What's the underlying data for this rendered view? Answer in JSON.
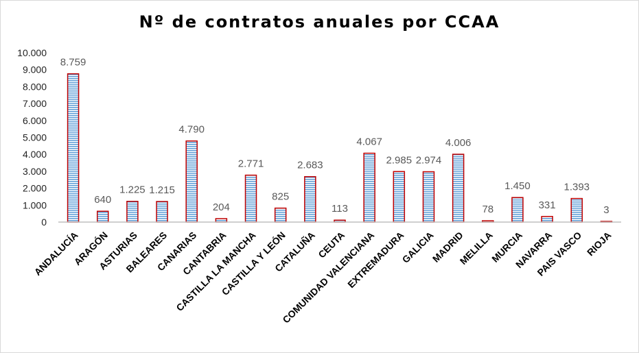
{
  "chart_data": {
    "type": "bar",
    "title": "Nº de contratos anuales por CCAA",
    "xlabel": "",
    "ylabel": "",
    "ylim": [
      0,
      10000
    ],
    "yticks": [
      "0",
      "1.000",
      "2.000",
      "3.000",
      "4.000",
      "5.000",
      "6.000",
      "7.000",
      "8.000",
      "9.000",
      "10.000"
    ],
    "grid": false,
    "legend": "none",
    "categories": [
      "ANDALUCÍA",
      "ARAGÓN",
      "ASTURIAS",
      "BALEARES",
      "CANARIAS",
      "CANTABRIA",
      "CASTILLA LA MANCHA",
      "CASTILLA Y LEÓN",
      "CATALUÑA",
      "CEUTA",
      "COMUNIDAD VALENCIANA",
      "EXTREMADURA",
      "GALICIA",
      "MADRID",
      "MELILLA",
      "MURCIA",
      "NAVARRA",
      "PAIS VASCO",
      "RIOJA"
    ],
    "values": [
      8759,
      640,
      1225,
      1215,
      4790,
      204,
      2771,
      825,
      2683,
      113,
      4067,
      2985,
      2974,
      4006,
      78,
      1450,
      331,
      1393,
      3
    ],
    "data_labels": [
      "8.759",
      "640",
      "1.225",
      "1.215",
      "4.790",
      "204",
      "2.771",
      "825",
      "2.683",
      "113",
      "4.067",
      "2.985",
      "2.974",
      "4.006",
      "78",
      "1.450",
      "331",
      "1.393",
      "3"
    ],
    "colors": {
      "bar_fill": "#bdd7ee",
      "bar_stripe": "#5b9bd5",
      "bar_border": "#c00000",
      "axis": "#bfbfbf"
    }
  }
}
